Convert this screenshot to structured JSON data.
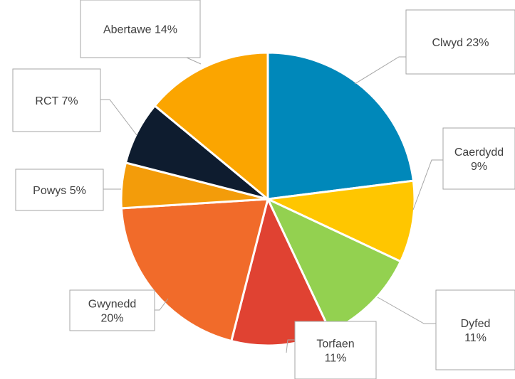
{
  "chart_data": {
    "type": "pie",
    "title": "",
    "slices": [
      {
        "label": "Clwyd",
        "percent_label": "23%",
        "value": 23,
        "color": "#0088BA"
      },
      {
        "label": "Caerdydd",
        "percent_label": "9%",
        "value": 9,
        "color": "#FFC600"
      },
      {
        "label": "Dyfed",
        "percent_label": "11%",
        "value": 11,
        "color": "#93D150"
      },
      {
        "label": "Torfaen",
        "percent_label": "11%",
        "value": 11,
        "color": "#E04232"
      },
      {
        "label": "Gwynedd",
        "percent_label": "20%",
        "value": 20,
        "color": "#F16B2A"
      },
      {
        "label": "Powys",
        "percent_label": "5%",
        "value": 5,
        "color": "#F39C0A"
      },
      {
        "label": "RCT",
        "percent_label": "7%",
        "value": 7,
        "color": "#0E1C2F"
      },
      {
        "label": "Abertawe",
        "percent_label": "14%",
        "value": 14,
        "color": "#FBA500"
      }
    ],
    "legend": "none",
    "data_labels": "callouts"
  }
}
